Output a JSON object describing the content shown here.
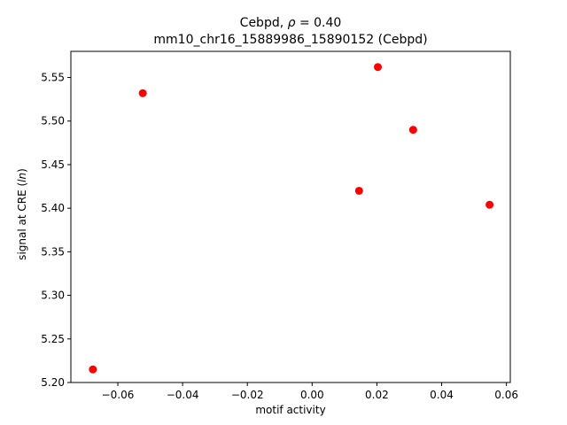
{
  "chart_data": {
    "type": "scatter",
    "title_line1_prefix": "Cebpd, ",
    "title_line1_rho": "ρ",
    "title_line1_suffix": " = 0.40",
    "title_line2": "mm10_chr16_15889986_15890152 (Cebpd)",
    "xlabel": "motif activity",
    "ylabel_prefix": "signal at CRE (",
    "ylabel_italic": "ln",
    "ylabel_suffix": ")",
    "xlim": [
      -0.0745,
      0.0612
    ],
    "ylim": [
      5.2,
      5.58
    ],
    "xticks": [
      -0.06,
      -0.04,
      -0.02,
      0.0,
      0.02,
      0.04,
      0.06
    ],
    "xtick_labels": [
      "−0.06",
      "−0.04",
      "−0.02",
      "0.00",
      "0.02",
      "0.04",
      "0.06"
    ],
    "yticks": [
      5.2,
      5.25,
      5.3,
      5.35,
      5.4,
      5.45,
      5.5,
      5.55
    ],
    "ytick_labels": [
      "5.20",
      "5.25",
      "5.30",
      "5.35",
      "5.40",
      "5.45",
      "5.50",
      "5.55"
    ],
    "grid": false,
    "marker_color": "#ff0000",
    "points": [
      {
        "x": -0.0677,
        "y": 5.215
      },
      {
        "x": -0.0523,
        "y": 5.532
      },
      {
        "x": 0.0145,
        "y": 5.42
      },
      {
        "x": 0.0203,
        "y": 5.562
      },
      {
        "x": 0.0312,
        "y": 5.49
      },
      {
        "x": 0.0548,
        "y": 5.404
      }
    ]
  }
}
